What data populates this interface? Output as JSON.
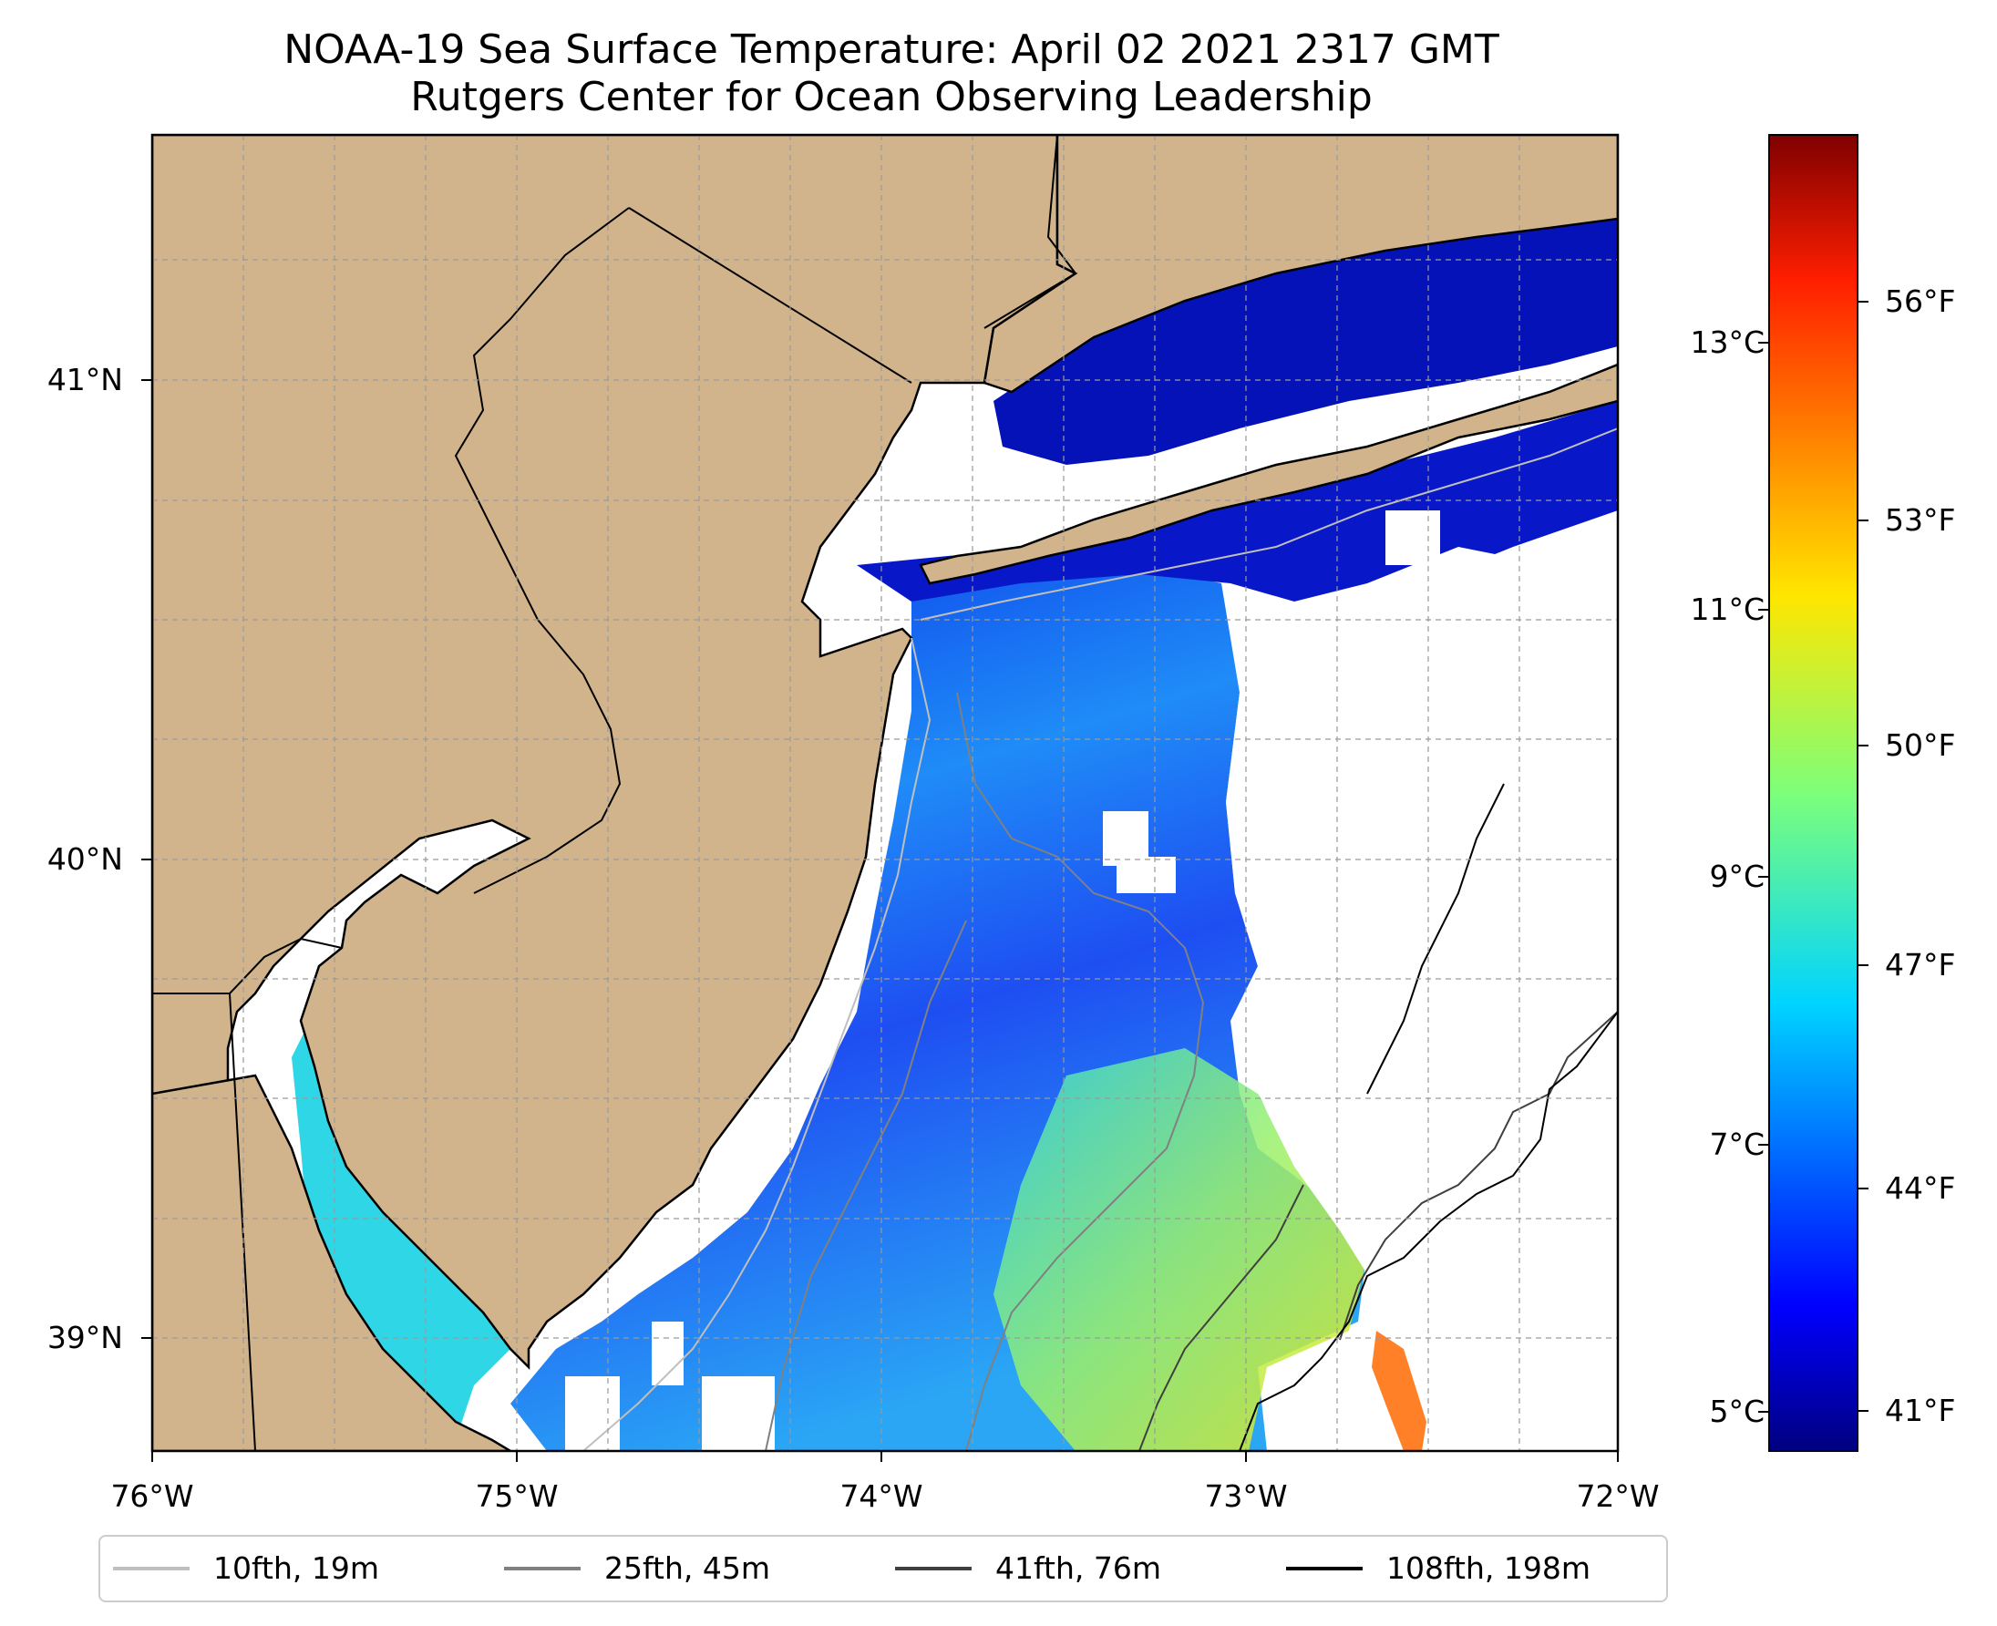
{
  "title": {
    "line1": "NOAA-19 Sea Surface Temperature: April 02 2021 2317 GMT",
    "line2": "Rutgers Center for Ocean Observing Leadership"
  },
  "map": {
    "lon_range": [
      -76,
      -72
    ],
    "lat_range": [
      38.74,
      41.52
    ],
    "land_color": "#d2b48c",
    "water_no_data_color": "#ffffff",
    "gridlines": true,
    "lon_ticks": [
      "76°W",
      "75°W",
      "74°W",
      "73°W",
      "72°W"
    ],
    "lat_ticks": [
      "41°N",
      "40°N",
      "39°N"
    ]
  },
  "colorbar": {
    "colormap": "jet",
    "celsius_ticks": [
      "13°C",
      "11°C",
      "9°C",
      "7°C",
      "5°C"
    ],
    "fahrenheit_ticks": [
      "56°F",
      "53°F",
      "50°F",
      "47°F",
      "44°F",
      "41°F"
    ]
  },
  "legend": {
    "items": [
      {
        "label": "10fth, 19m",
        "color": "#bfbfbf"
      },
      {
        "label": "25fth, 45m",
        "color": "#808080"
      },
      {
        "label": "41fth, 76m",
        "color": "#404040"
      },
      {
        "label": "108fth, 198m",
        "color": "#000000"
      }
    ]
  }
}
